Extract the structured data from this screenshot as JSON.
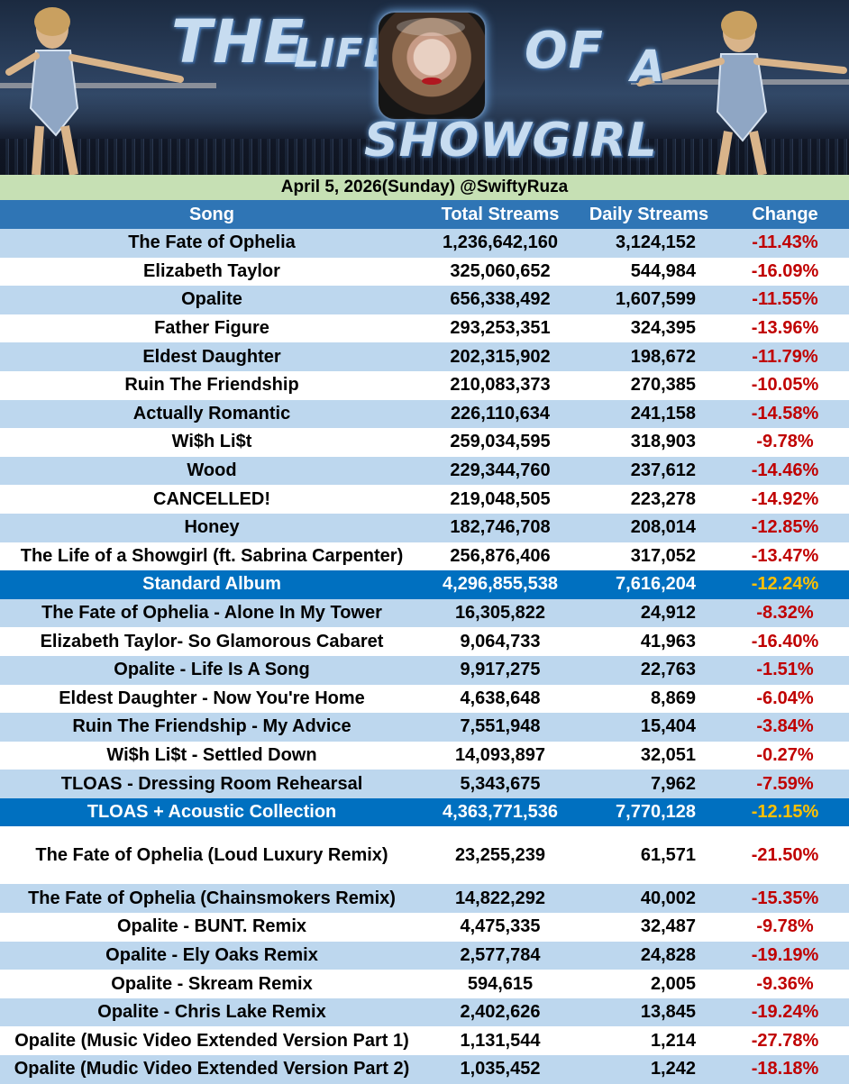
{
  "banner": {
    "title_words": [
      "THE",
      "LIFE",
      "OF",
      "A",
      "SHOWGIRL"
    ]
  },
  "subtitle": "April 5, 2026(Sunday) @SwiftyRuza",
  "table": {
    "headers": [
      "Song",
      "Total Streams",
      "Daily Streams",
      "Change"
    ],
    "rows": [
      {
        "song": "The Fate of Ophelia",
        "total": "1,236,642,160",
        "daily": "3,124,152",
        "change": "-11.43%",
        "style": "even"
      },
      {
        "song": "Elizabeth Taylor",
        "total": "325,060,652",
        "daily": "544,984",
        "change": "-16.09%",
        "style": "odd"
      },
      {
        "song": "Opalite",
        "total": "656,338,492",
        "daily": "1,607,599",
        "change": "-11.55%",
        "style": "even"
      },
      {
        "song": "Father Figure",
        "total": "293,253,351",
        "daily": "324,395",
        "change": "-13.96%",
        "style": "odd"
      },
      {
        "song": "Eldest Daughter",
        "total": "202,315,902",
        "daily": "198,672",
        "change": "-11.79%",
        "style": "even"
      },
      {
        "song": "Ruin The Friendship",
        "total": "210,083,373",
        "daily": "270,385",
        "change": "-10.05%",
        "style": "odd"
      },
      {
        "song": "Actually Romantic",
        "total": "226,110,634",
        "daily": "241,158",
        "change": "-14.58%",
        "style": "even"
      },
      {
        "song": "Wi$h Li$t",
        "total": "259,034,595",
        "daily": "318,903",
        "change": "-9.78%",
        "style": "odd"
      },
      {
        "song": "Wood",
        "total": "229,344,760",
        "daily": "237,612",
        "change": "-14.46%",
        "style": "even"
      },
      {
        "song": "CANCELLED!",
        "total": "219,048,505",
        "daily": "223,278",
        "change": "-14.92%",
        "style": "odd"
      },
      {
        "song": "Honey",
        "total": "182,746,708",
        "daily": "208,014",
        "change": "-12.85%",
        "style": "even"
      },
      {
        "song": "The Life of a Showgirl (ft. Sabrina Carpenter)",
        "total": "256,876,406",
        "daily": "317,052",
        "change": "-13.47%",
        "style": "odd"
      },
      {
        "song": "Standard Album",
        "total": "4,296,855,538",
        "daily": "7,616,204",
        "change": "-12.24%",
        "style": "total"
      },
      {
        "song": "The Fate of Ophelia - Alone In My Tower",
        "total": "16,305,822",
        "daily": "24,912",
        "change": "-8.32%",
        "style": "even"
      },
      {
        "song": "Elizabeth Taylor- So Glamorous Cabaret",
        "total": "9,064,733",
        "daily": "41,963",
        "change": "-16.40%",
        "style": "odd"
      },
      {
        "song": "Opalite - Life Is A Song",
        "total": "9,917,275",
        "daily": "22,763",
        "change": "-1.51%",
        "style": "even"
      },
      {
        "song": "Eldest Daughter - Now You're Home",
        "total": "4,638,648",
        "daily": "8,869",
        "change": "-6.04%",
        "style": "odd"
      },
      {
        "song": "Ruin The Friendship - My Advice",
        "total": "7,551,948",
        "daily": "15,404",
        "change": "-3.84%",
        "style": "even"
      },
      {
        "song": "Wi$h Li$t - Settled Down",
        "total": "14,093,897",
        "daily": "32,051",
        "change": "-0.27%",
        "style": "odd"
      },
      {
        "song": "TLOAS - Dressing Room Rehearsal",
        "total": "5,343,675",
        "daily": "7,962",
        "change": "-7.59%",
        "style": "even"
      },
      {
        "song": "TLOAS + Acoustic Collection",
        "total": "4,363,771,536",
        "daily": "7,770,128",
        "change": "-12.15%",
        "style": "total"
      },
      {
        "song": "The Fate of Ophelia  (Loud Luxury Remix)",
        "total": "23,255,239",
        "daily": "61,571",
        "change": "-21.50%",
        "style": "odd tall"
      },
      {
        "song": "The Fate of Ophelia (Chainsmokers Remix)",
        "total": "14,822,292",
        "daily": "40,002",
        "change": "-15.35%",
        "style": "even"
      },
      {
        "song": "Opalite - BUNT. Remix",
        "total": "4,475,335",
        "daily": "32,487",
        "change": "-9.78%",
        "style": "odd"
      },
      {
        "song": "Opalite - Ely Oaks Remix",
        "total": "2,577,784",
        "daily": "24,828",
        "change": "-19.19%",
        "style": "even"
      },
      {
        "song": "Opalite - Skream Remix",
        "total": "594,615",
        "daily": "2,005",
        "change": "-9.36%",
        "style": "odd"
      },
      {
        "song": "Opalite - Chris Lake Remix",
        "total": "2,402,626",
        "daily": "13,845",
        "change": "-19.24%",
        "style": "even"
      },
      {
        "song": "Opalite (Music Video Extended Version Part 1)",
        "total": "1,131,544",
        "daily": "1,214",
        "change": "-27.78%",
        "style": "odd"
      },
      {
        "song": "Opalite (Mudic Video Extended Version Part 2)",
        "total": "1,035,452",
        "daily": "1,242",
        "change": "-18.18%",
        "style": "even"
      }
    ]
  },
  "colors": {
    "header_bg": "#2f75b5",
    "total_row_bg": "#0070c0",
    "stripe": "#bdd7ee",
    "subtitle_bg": "#c6e0b4",
    "negative": "#c00000",
    "total_change": "#ffc000"
  }
}
